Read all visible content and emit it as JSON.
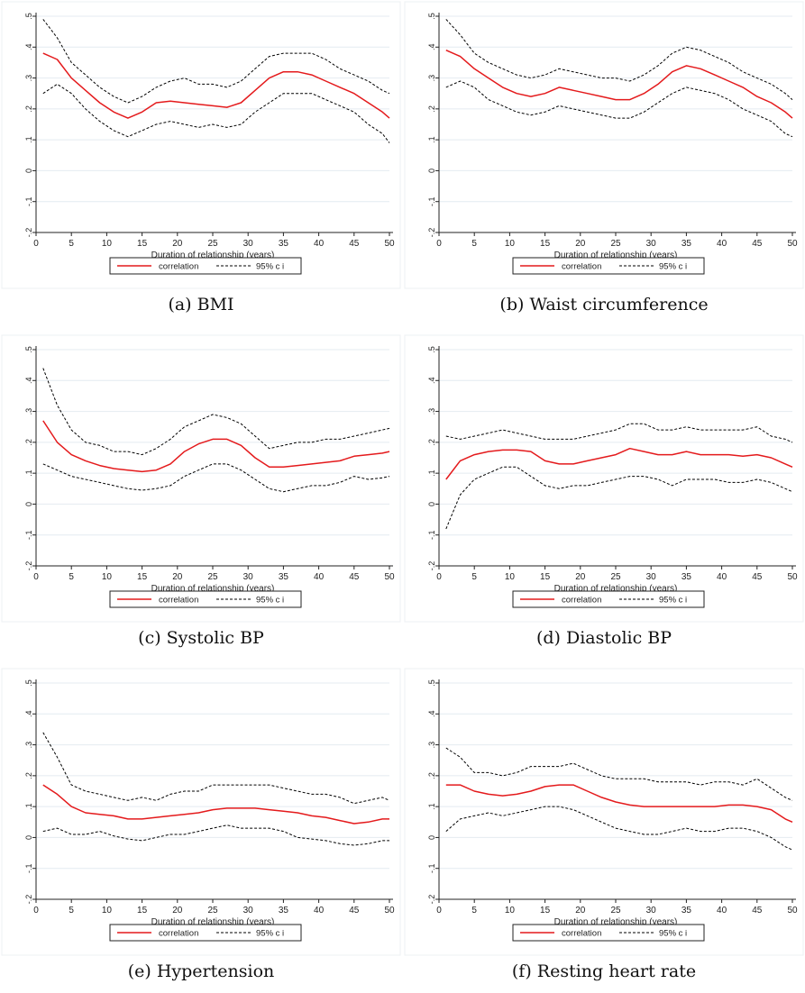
{
  "shared": {
    "xlabel": "Duration of relationship (years)",
    "x_ticks": [
      0,
      5,
      10,
      15,
      20,
      25,
      30,
      35,
      40,
      45,
      50
    ],
    "y_ticks": [
      -0.2,
      -0.1,
      0,
      0.1,
      0.2,
      0.3,
      0.4,
      0.5
    ],
    "y_tick_labels": [
      "-.2",
      "-.1",
      "0",
      ".1",
      ".2",
      ".3",
      ".4",
      ".5"
    ],
    "legend": {
      "line": "correlation",
      "ci": "95% c i"
    },
    "colors": {
      "line": "#e41a1c",
      "ci": "#000000",
      "grid": "#e4ebf1"
    }
  },
  "chart_data": [
    {
      "type": "line",
      "caption": "(a) BMI",
      "xlabel": "Duration of relationship (years)",
      "xlim": [
        0,
        50
      ],
      "ylim": [
        -0.2,
        0.5
      ],
      "grid": true,
      "legend_position": "bottom",
      "x": [
        1,
        3,
        5,
        7,
        9,
        11,
        13,
        15,
        17,
        19,
        21,
        23,
        25,
        27,
        29,
        31,
        33,
        35,
        37,
        39,
        41,
        43,
        45,
        47,
        49,
        50
      ],
      "series": [
        {
          "name": "correlation",
          "values": [
            0.38,
            0.36,
            0.3,
            0.26,
            0.22,
            0.19,
            0.17,
            0.19,
            0.22,
            0.225,
            0.22,
            0.215,
            0.21,
            0.205,
            0.22,
            0.26,
            0.3,
            0.32,
            0.32,
            0.31,
            0.29,
            0.27,
            0.25,
            0.22,
            0.19,
            0.17
          ]
        },
        {
          "name": "95% c i upper",
          "values": [
            0.49,
            0.43,
            0.35,
            0.31,
            0.27,
            0.24,
            0.22,
            0.24,
            0.27,
            0.29,
            0.3,
            0.28,
            0.28,
            0.27,
            0.29,
            0.33,
            0.37,
            0.38,
            0.38,
            0.38,
            0.36,
            0.33,
            0.31,
            0.29,
            0.26,
            0.25
          ]
        },
        {
          "name": "95% c i lower",
          "values": [
            0.25,
            0.28,
            0.25,
            0.2,
            0.16,
            0.13,
            0.11,
            0.13,
            0.15,
            0.16,
            0.15,
            0.14,
            0.15,
            0.14,
            0.15,
            0.19,
            0.22,
            0.25,
            0.25,
            0.25,
            0.23,
            0.21,
            0.19,
            0.15,
            0.12,
            0.09
          ]
        }
      ]
    },
    {
      "type": "line",
      "caption": "(b) Waist circumference",
      "xlabel": "Duration of relationship (years)",
      "xlim": [
        0,
        50
      ],
      "ylim": [
        -0.2,
        0.5
      ],
      "grid": true,
      "legend_position": "bottom",
      "x": [
        1,
        3,
        5,
        7,
        9,
        11,
        13,
        15,
        17,
        19,
        21,
        23,
        25,
        27,
        29,
        31,
        33,
        35,
        37,
        39,
        41,
        43,
        45,
        47,
        49,
        50
      ],
      "series": [
        {
          "name": "correlation",
          "values": [
            0.39,
            0.37,
            0.33,
            0.3,
            0.27,
            0.25,
            0.24,
            0.25,
            0.27,
            0.26,
            0.25,
            0.24,
            0.23,
            0.23,
            0.25,
            0.28,
            0.32,
            0.34,
            0.33,
            0.31,
            0.29,
            0.27,
            0.24,
            0.22,
            0.19,
            0.17
          ]
        },
        {
          "name": "95% c i upper",
          "values": [
            0.49,
            0.44,
            0.38,
            0.35,
            0.33,
            0.31,
            0.3,
            0.31,
            0.33,
            0.32,
            0.31,
            0.3,
            0.3,
            0.29,
            0.31,
            0.34,
            0.38,
            0.4,
            0.39,
            0.37,
            0.35,
            0.32,
            0.3,
            0.28,
            0.25,
            0.23
          ]
        },
        {
          "name": "95% c i lower",
          "values": [
            0.27,
            0.29,
            0.27,
            0.23,
            0.21,
            0.19,
            0.18,
            0.19,
            0.21,
            0.2,
            0.19,
            0.18,
            0.17,
            0.17,
            0.19,
            0.22,
            0.25,
            0.27,
            0.26,
            0.25,
            0.23,
            0.2,
            0.18,
            0.16,
            0.12,
            0.11
          ]
        }
      ]
    },
    {
      "type": "line",
      "caption": "(c) Systolic BP",
      "xlabel": "Duration of relationship (years)",
      "xlim": [
        0,
        50
      ],
      "ylim": [
        -0.2,
        0.5
      ],
      "grid": true,
      "legend_position": "bottom",
      "x": [
        1,
        3,
        5,
        7,
        9,
        11,
        13,
        15,
        17,
        19,
        21,
        23,
        25,
        27,
        29,
        31,
        33,
        35,
        37,
        39,
        41,
        43,
        45,
        47,
        49,
        50
      ],
      "series": [
        {
          "name": "correlation",
          "values": [
            0.27,
            0.2,
            0.16,
            0.14,
            0.125,
            0.115,
            0.11,
            0.105,
            0.11,
            0.13,
            0.17,
            0.195,
            0.21,
            0.21,
            0.19,
            0.15,
            0.12,
            0.12,
            0.125,
            0.13,
            0.135,
            0.14,
            0.155,
            0.16,
            0.165,
            0.17
          ]
        },
        {
          "name": "95% c i upper",
          "values": [
            0.44,
            0.32,
            0.24,
            0.2,
            0.19,
            0.17,
            0.17,
            0.16,
            0.18,
            0.21,
            0.25,
            0.27,
            0.29,
            0.28,
            0.26,
            0.22,
            0.18,
            0.19,
            0.2,
            0.2,
            0.21,
            0.21,
            0.22,
            0.23,
            0.24,
            0.245
          ]
        },
        {
          "name": "95% c i lower",
          "values": [
            0.13,
            0.11,
            0.09,
            0.08,
            0.07,
            0.06,
            0.05,
            0.045,
            0.05,
            0.06,
            0.09,
            0.11,
            0.13,
            0.13,
            0.11,
            0.08,
            0.05,
            0.04,
            0.05,
            0.06,
            0.06,
            0.07,
            0.09,
            0.08,
            0.085,
            0.09
          ]
        }
      ]
    },
    {
      "type": "line",
      "caption": "(d) Diastolic BP",
      "xlabel": "Duration of relationship (years)",
      "xlim": [
        0,
        50
      ],
      "ylim": [
        -0.2,
        0.5
      ],
      "grid": true,
      "legend_position": "bottom",
      "x": [
        1,
        3,
        5,
        7,
        9,
        11,
        13,
        15,
        17,
        19,
        21,
        23,
        25,
        27,
        29,
        31,
        33,
        35,
        37,
        39,
        41,
        43,
        45,
        47,
        49,
        50
      ],
      "series": [
        {
          "name": "correlation",
          "values": [
            0.08,
            0.14,
            0.16,
            0.17,
            0.175,
            0.175,
            0.17,
            0.14,
            0.13,
            0.13,
            0.14,
            0.15,
            0.16,
            0.18,
            0.17,
            0.16,
            0.16,
            0.17,
            0.16,
            0.16,
            0.16,
            0.155,
            0.16,
            0.15,
            0.13,
            0.12
          ]
        },
        {
          "name": "95% c i upper",
          "values": [
            0.22,
            0.21,
            0.22,
            0.23,
            0.24,
            0.23,
            0.22,
            0.21,
            0.21,
            0.21,
            0.22,
            0.23,
            0.24,
            0.26,
            0.26,
            0.24,
            0.24,
            0.25,
            0.24,
            0.24,
            0.24,
            0.24,
            0.25,
            0.22,
            0.21,
            0.2
          ]
        },
        {
          "name": "95% c i lower",
          "values": [
            -0.08,
            0.03,
            0.08,
            0.1,
            0.12,
            0.12,
            0.09,
            0.06,
            0.05,
            0.06,
            0.06,
            0.07,
            0.08,
            0.09,
            0.09,
            0.08,
            0.06,
            0.08,
            0.08,
            0.08,
            0.07,
            0.07,
            0.08,
            0.07,
            0.05,
            0.04
          ]
        }
      ]
    },
    {
      "type": "line",
      "caption": "(e) Hypertension",
      "xlabel": "Duration of relationship (years)",
      "xlim": [
        0,
        50
      ],
      "ylim": [
        -0.2,
        0.5
      ],
      "grid": true,
      "legend_position": "bottom",
      "x": [
        1,
        3,
        5,
        7,
        9,
        11,
        13,
        15,
        17,
        19,
        21,
        23,
        25,
        27,
        29,
        31,
        33,
        35,
        37,
        39,
        41,
        43,
        45,
        47,
        49,
        50
      ],
      "series": [
        {
          "name": "correlation",
          "values": [
            0.17,
            0.14,
            0.1,
            0.08,
            0.075,
            0.07,
            0.06,
            0.06,
            0.065,
            0.07,
            0.075,
            0.08,
            0.09,
            0.095,
            0.095,
            0.095,
            0.09,
            0.085,
            0.08,
            0.07,
            0.065,
            0.055,
            0.045,
            0.05,
            0.06,
            0.06
          ]
        },
        {
          "name": "95% c i upper",
          "values": [
            0.34,
            0.26,
            0.17,
            0.15,
            0.14,
            0.13,
            0.12,
            0.13,
            0.12,
            0.14,
            0.15,
            0.15,
            0.17,
            0.17,
            0.17,
            0.17,
            0.17,
            0.16,
            0.15,
            0.14,
            0.14,
            0.13,
            0.11,
            0.12,
            0.13,
            0.12
          ]
        },
        {
          "name": "95% c i lower",
          "values": [
            0.02,
            0.03,
            0.01,
            0.01,
            0.02,
            0.005,
            -0.005,
            -0.01,
            0.0,
            0.01,
            0.01,
            0.02,
            0.03,
            0.04,
            0.03,
            0.03,
            0.03,
            0.02,
            0.0,
            -0.005,
            -0.01,
            -0.02,
            -0.025,
            -0.02,
            -0.01,
            -0.01
          ]
        }
      ]
    },
    {
      "type": "line",
      "caption": "(f) Resting heart rate",
      "xlabel": "Duration of relationship (years)",
      "xlim": [
        0,
        50
      ],
      "ylim": [
        -0.2,
        0.5
      ],
      "grid": true,
      "legend_position": "bottom",
      "x": [
        1,
        3,
        5,
        7,
        9,
        11,
        13,
        15,
        17,
        19,
        21,
        23,
        25,
        27,
        29,
        31,
        33,
        35,
        37,
        39,
        41,
        43,
        45,
        47,
        49,
        50
      ],
      "series": [
        {
          "name": "correlation",
          "values": [
            0.17,
            0.17,
            0.15,
            0.14,
            0.135,
            0.14,
            0.15,
            0.165,
            0.17,
            0.17,
            0.15,
            0.13,
            0.115,
            0.105,
            0.1,
            0.1,
            0.1,
            0.1,
            0.1,
            0.1,
            0.105,
            0.105,
            0.1,
            0.09,
            0.06,
            0.05
          ]
        },
        {
          "name": "95% c i upper",
          "values": [
            0.29,
            0.26,
            0.21,
            0.21,
            0.2,
            0.21,
            0.23,
            0.23,
            0.23,
            0.24,
            0.22,
            0.2,
            0.19,
            0.19,
            0.19,
            0.18,
            0.18,
            0.18,
            0.17,
            0.18,
            0.18,
            0.17,
            0.19,
            0.16,
            0.13,
            0.12
          ]
        },
        {
          "name": "95% c i lower",
          "values": [
            0.02,
            0.06,
            0.07,
            0.08,
            0.07,
            0.08,
            0.09,
            0.1,
            0.1,
            0.09,
            0.07,
            0.05,
            0.03,
            0.02,
            0.01,
            0.01,
            0.02,
            0.03,
            0.02,
            0.02,
            0.03,
            0.03,
            0.02,
            0.0,
            -0.03,
            -0.04
          ]
        }
      ]
    }
  ]
}
